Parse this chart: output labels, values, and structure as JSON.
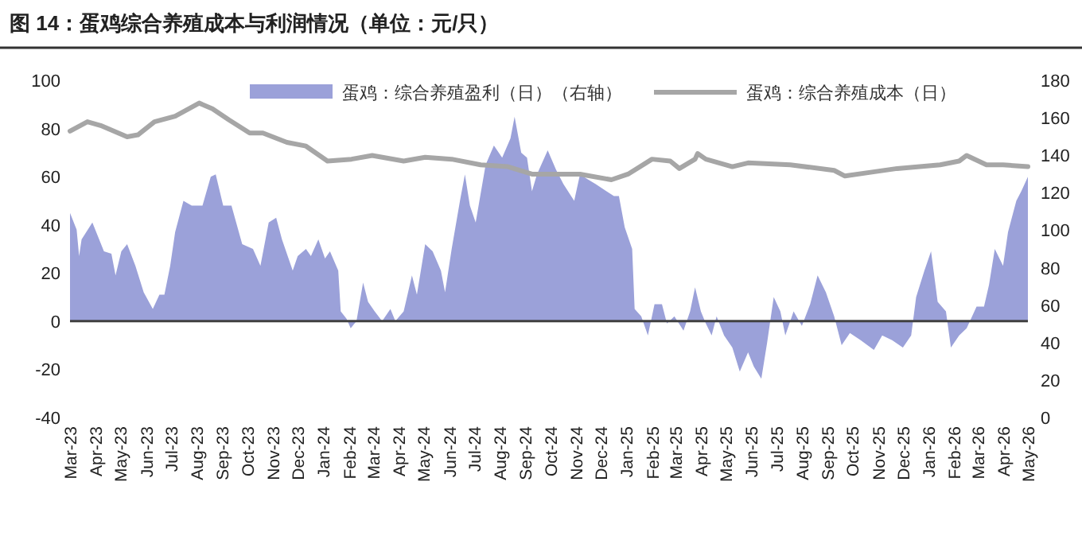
{
  "chart_data": {
    "type": "area",
    "title": "图 14：蛋鸡综合养殖成本与利润情况（单位：元/只）",
    "legend": "top",
    "xlim": [
      "2023-03-01",
      "2026-05-01"
    ],
    "xticks": [
      {
        "value": "2023-03-01",
        "label": "Mar-23"
      },
      {
        "value": "2023-04-01",
        "label": "Apr-23"
      },
      {
        "value": "2023-05-01",
        "label": "May-23"
      },
      {
        "value": "2023-06-01",
        "label": "Jun-23"
      },
      {
        "value": "2023-07-01",
        "label": "Jul-23"
      },
      {
        "value": "2023-08-01",
        "label": "Aug-23"
      },
      {
        "value": "2023-09-01",
        "label": "Sep-23"
      },
      {
        "value": "2023-10-01",
        "label": "Oct-23"
      },
      {
        "value": "2023-11-01",
        "label": "Nov-23"
      },
      {
        "value": "2023-12-01",
        "label": "Dec-23"
      },
      {
        "value": "2024-01-01",
        "label": "Jan-24"
      },
      {
        "value": "2024-02-01",
        "label": "Feb-24"
      },
      {
        "value": "2024-03-01",
        "label": "Mar-24"
      },
      {
        "value": "2024-04-01",
        "label": "Apr-24"
      },
      {
        "value": "2024-05-01",
        "label": "May-24"
      },
      {
        "value": "2024-06-01",
        "label": "Jun-24"
      },
      {
        "value": "2024-07-01",
        "label": "Jul-24"
      },
      {
        "value": "2024-08-01",
        "label": "Aug-24"
      },
      {
        "value": "2024-09-01",
        "label": "Sep-24"
      },
      {
        "value": "2024-10-01",
        "label": "Oct-24"
      },
      {
        "value": "2024-11-01",
        "label": "Nov-24"
      },
      {
        "value": "2024-12-01",
        "label": "Dec-24"
      },
      {
        "value": "2025-01-01",
        "label": "Jan-25"
      },
      {
        "value": "2025-02-01",
        "label": "Feb-25"
      },
      {
        "value": "2025-03-01",
        "label": "Mar-25"
      },
      {
        "value": "2025-04-01",
        "label": "Apr-25"
      },
      {
        "value": "2025-05-01",
        "label": "May-25"
      },
      {
        "value": "2025-06-01",
        "label": "Jun-25"
      },
      {
        "value": "2025-07-01",
        "label": "Jul-25"
      },
      {
        "value": "2025-08-01",
        "label": "Aug-25"
      },
      {
        "value": "2025-09-01",
        "label": "Sep-25"
      },
      {
        "value": "2025-10-01",
        "label": "Oct-25"
      },
      {
        "value": "2025-11-01",
        "label": "Nov-25"
      },
      {
        "value": "2025-12-01",
        "label": "Dec-25"
      },
      {
        "value": "2026-01-01",
        "label": "Jan-26"
      },
      {
        "value": "2026-02-01",
        "label": "Feb-26"
      },
      {
        "value": "2026-03-01",
        "label": "Mar-26"
      },
      {
        "value": "2026-04-01",
        "label": "Apr-26"
      },
      {
        "value": "2026-05-01",
        "label": "May-26"
      }
    ],
    "ylim": [
      -40,
      100
    ],
    "yticks": [
      -40,
      -20,
      0,
      20,
      40,
      60,
      80,
      100
    ],
    "y2lim": [
      0,
      180
    ],
    "y2ticks": [
      0,
      20,
      40,
      60,
      80,
      100,
      120,
      140,
      160,
      180
    ],
    "series": [
      {
        "name": "蛋鸡：综合养殖盈利（日）（右轴）",
        "color": "#9ba1d9",
        "x": [
          "2023-03-01",
          "2023-03-09",
          "2023-03-12",
          "2023-03-15",
          "2023-03-28",
          "2023-04-11",
          "2023-04-20",
          "2023-04-25",
          "2023-05-02",
          "2023-05-09",
          "2023-05-19",
          "2023-05-29",
          "2023-06-09",
          "2023-06-17",
          "2023-06-23",
          "2023-06-30",
          "2023-07-06",
          "2023-07-16",
          "2023-07-26",
          "2023-08-08",
          "2023-08-18",
          "2023-08-24",
          "2023-09-02",
          "2023-09-12",
          "2023-09-25",
          "2023-10-08",
          "2023-10-17",
          "2023-10-27",
          "2023-11-05",
          "2023-11-12",
          "2023-11-25",
          "2023-12-01",
          "2023-12-11",
          "2023-12-17",
          "2023-12-26",
          "2024-01-03",
          "2024-01-09",
          "2024-01-19",
          "2024-01-22",
          "2024-01-29",
          "2024-02-03",
          "2024-02-10",
          "2024-02-18",
          "2024-02-24",
          "2024-03-03",
          "2024-03-12",
          "2024-03-22",
          "2024-03-28",
          "2024-04-07",
          "2024-04-17",
          "2024-04-23",
          "2024-05-03",
          "2024-05-12",
          "2024-05-22",
          "2024-05-27",
          "2024-06-04",
          "2024-06-14",
          "2024-06-20",
          "2024-06-26",
          "2024-07-03",
          "2024-07-15",
          "2024-07-25",
          "2024-08-04",
          "2024-08-14",
          "2024-08-19",
          "2024-08-27",
          "2024-09-03",
          "2024-09-09",
          "2024-09-15",
          "2024-09-28",
          "2024-10-08",
          "2024-10-17",
          "2024-10-30",
          "2024-11-06",
          "2024-11-15",
          "2024-11-25",
          "2024-12-08",
          "2024-12-17",
          "2024-12-23",
          "2024-12-30",
          "2025-01-08",
          "2025-01-11",
          "2025-01-19",
          "2025-01-27",
          "2025-02-04",
          "2025-02-13",
          "2025-02-19",
          "2025-02-28",
          "2025-03-11",
          "2025-03-19",
          "2025-03-25",
          "2025-04-01",
          "2025-04-07",
          "2025-04-14",
          "2025-04-20",
          "2025-04-29",
          "2025-05-09",
          "2025-05-18",
          "2025-05-28",
          "2025-06-04",
          "2025-06-13",
          "2025-06-20",
          "2025-06-28",
          "2025-07-06",
          "2025-07-12",
          "2025-07-22",
          "2025-08-01",
          "2025-08-11",
          "2025-08-20",
          "2025-08-30",
          "2025-09-09",
          "2025-09-18",
          "2025-09-28",
          "2025-10-11",
          "2025-10-27",
          "2025-11-06",
          "2025-11-18",
          "2025-12-01",
          "2025-12-11",
          "2025-12-17",
          "2025-12-27",
          "2026-01-04",
          "2026-01-12",
          "2026-01-22",
          "2026-01-28",
          "2026-02-07",
          "2026-02-16",
          "2026-02-28",
          "2026-03-09",
          "2026-03-15",
          "2026-03-22",
          "2026-04-01",
          "2026-04-07",
          "2026-04-17",
          "2026-04-23",
          "2026-05-01"
        ],
        "values": [
          45,
          38,
          27,
          34,
          41,
          29,
          28,
          19,
          29,
          32,
          23,
          12,
          5,
          11,
          11,
          23,
          37,
          50,
          48,
          48,
          60,
          61,
          48,
          48,
          32,
          30,
          23,
          41,
          43,
          34,
          21,
          27,
          30,
          27,
          34,
          26,
          29,
          21,
          4,
          1,
          -3,
          0,
          16,
          8,
          4,
          0,
          5,
          0,
          4,
          19,
          11,
          32,
          29,
          21,
          12,
          30,
          50,
          61,
          48,
          41,
          65,
          73,
          68,
          76,
          85,
          70,
          68,
          54,
          61,
          71,
          63,
          57,
          50,
          61,
          59,
          57,
          54,
          52,
          52,
          39,
          30,
          5,
          2,
          -6,
          7,
          7,
          -1,
          2,
          -4,
          4,
          14,
          4,
          -1,
          -6,
          2,
          -6,
          -11,
          -21,
          -13,
          -19,
          -24,
          -9,
          10,
          4,
          -6,
          4,
          -2,
          7,
          19,
          12,
          2,
          -10,
          -5,
          -8,
          -12,
          -6,
          -8,
          -11,
          -6,
          10,
          21,
          29,
          8,
          4,
          -11,
          -6,
          -3,
          6,
          6,
          15,
          30,
          23,
          37,
          50,
          54,
          60
        ]
      },
      {
        "name": "蛋鸡：综合养殖成本（日）",
        "type": "line",
        "axis": "y2",
        "color": "#a6a6a6",
        "x": [
          "2023-03-01",
          "2023-03-22",
          "2023-04-07",
          "2023-05-09",
          "2023-05-22",
          "2023-06-11",
          "2023-07-06",
          "2023-08-04",
          "2023-08-20",
          "2023-09-09",
          "2023-10-04",
          "2023-10-20",
          "2023-11-18",
          "2023-12-11",
          "2024-01-06",
          "2024-02-04",
          "2024-02-29",
          "2024-04-07",
          "2024-05-03",
          "2024-06-04",
          "2024-07-09",
          "2024-08-11",
          "2024-09-09",
          "2024-10-04",
          "2024-11-06",
          "2024-12-14",
          "2025-01-03",
          "2025-02-01",
          "2025-02-23",
          "2025-03-06",
          "2025-03-25",
          "2025-03-28",
          "2025-04-07",
          "2025-05-09",
          "2025-05-28",
          "2025-07-18",
          "2025-09-09",
          "2025-09-22",
          "2025-10-23",
          "2025-11-24",
          "2026-01-15",
          "2026-02-07",
          "2026-02-16",
          "2026-03-12",
          "2026-04-01",
          "2026-05-01"
        ],
        "values": [
          153,
          158,
          156,
          150,
          151,
          158,
          161,
          168,
          165,
          159,
          152,
          152,
          147,
          145,
          137,
          138,
          140,
          137,
          139,
          138,
          135,
          134,
          130,
          130,
          130,
          127,
          130,
          138,
          137,
          133,
          138,
          141,
          138,
          134,
          136,
          135,
          132,
          129,
          131,
          133,
          135,
          137,
          140,
          135,
          135,
          134
        ]
      }
    ]
  }
}
